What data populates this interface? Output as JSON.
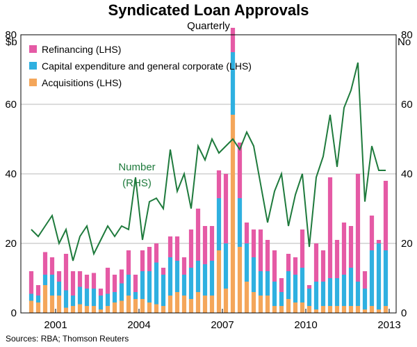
{
  "title": "Syndicated Loan Approvals",
  "subtitle": "Quarterly",
  "source": "Sources: RBA; Thomson Reuters",
  "colors": {
    "refinancing": "#e55aa5",
    "capex": "#2fb0e0",
    "acquisitions": "#f4a65a",
    "number": "#1e7a3c",
    "number_label": "#1e7a3c"
  },
  "chart_data": {
    "type": "bar",
    "subtype": "stacked bar with line on secondary axis",
    "title": "Syndicated Loan Approvals",
    "subtitle": "Quarterly",
    "left_unit": "$b",
    "right_unit": "No",
    "ylim_left": [
      0,
      80
    ],
    "ylim_right": [
      0,
      80
    ],
    "yticks_left": [
      "0",
      "20",
      "40",
      "60",
      "80"
    ],
    "yticks_right": [
      "0",
      "20",
      "40",
      "60",
      "80"
    ],
    "xticks": [
      "2001",
      "2004",
      "2007",
      "2010",
      "2013"
    ],
    "x_tick_years": [
      2001,
      2004,
      2007,
      2010,
      2013
    ],
    "x_range": [
      1999.75,
      2013.25
    ],
    "grid": true,
    "legend_position": "top-left",
    "line_label": [
      "Number",
      "(RHS)"
    ],
    "quarters": [
      "2000-Q1",
      "2000-Q2",
      "2000-Q3",
      "2000-Q4",
      "2001-Q1",
      "2001-Q2",
      "2001-Q3",
      "2001-Q4",
      "2002-Q1",
      "2002-Q2",
      "2002-Q3",
      "2002-Q4",
      "2003-Q1",
      "2003-Q2",
      "2003-Q3",
      "2003-Q4",
      "2004-Q1",
      "2004-Q2",
      "2004-Q3",
      "2004-Q4",
      "2005-Q1",
      "2005-Q2",
      "2005-Q3",
      "2005-Q4",
      "2006-Q1",
      "2006-Q2",
      "2006-Q3",
      "2006-Q4",
      "2007-Q1",
      "2007-Q2",
      "2007-Q3",
      "2007-Q4",
      "2008-Q1",
      "2008-Q2",
      "2008-Q3",
      "2008-Q4",
      "2009-Q1",
      "2009-Q2",
      "2009-Q3",
      "2009-Q4",
      "2010-Q1",
      "2010-Q2",
      "2010-Q3",
      "2010-Q4",
      "2011-Q1",
      "2011-Q2",
      "2011-Q3",
      "2011-Q4",
      "2012-Q1",
      "2012-Q2",
      "2012-Q3",
      "2012-Q4"
    ],
    "series": [
      {
        "name": "Acquisitions (LHS)",
        "axis": "left",
        "values": [
          3.5,
          3,
          8,
          5,
          5,
          1.5,
          2,
          2.5,
          2,
          2,
          1,
          2,
          3,
          3.5,
          5,
          4,
          4,
          3,
          2.5,
          2,
          5,
          6,
          5,
          4,
          6,
          5,
          5,
          18,
          7,
          57,
          19,
          9,
          6,
          5,
          5,
          2,
          2,
          4,
          3,
          3,
          2,
          1,
          2,
          2,
          2,
          2,
          2,
          2,
          1,
          2,
          1,
          2
        ]
      },
      {
        "name": "Capital expenditure and general corporate (LHS)",
        "axis": "left",
        "values": [
          2,
          2,
          3,
          6,
          4,
          5,
          3,
          5,
          5,
          5,
          4,
          3.5,
          3,
          5,
          6,
          2,
          8,
          9,
          12,
          9,
          11,
          9,
          6,
          9,
          9,
          9,
          10,
          15,
          13,
          18,
          14,
          11,
          10,
          7,
          7,
          7,
          4,
          8,
          8,
          10,
          5,
          8,
          7,
          8,
          8,
          9,
          11,
          7,
          6,
          16,
          19,
          16
        ]
      },
      {
        "name": "Refinancing (LHS)",
        "axis": "left",
        "values": [
          6.5,
          3,
          6.5,
          5,
          3,
          10.5,
          7,
          4.5,
          4,
          4.5,
          2,
          7.5,
          5,
          4,
          7,
          5,
          6,
          7,
          5.5,
          2,
          6,
          7,
          5,
          11,
          15,
          11,
          10,
          8,
          20,
          7,
          16,
          6,
          8,
          12,
          9,
          9,
          4,
          5,
          5,
          11,
          1,
          11,
          9,
          29,
          11,
          15,
          12,
          31,
          5,
          10,
          1,
          20
        ]
      },
      {
        "name": "Number",
        "axis": "right",
        "type": "line",
        "values": [
          24,
          22,
          25,
          28,
          20,
          24,
          15,
          22,
          25,
          17,
          21,
          25,
          22,
          25,
          24,
          39,
          21,
          32,
          33,
          30,
          47,
          35,
          40,
          30,
          48,
          44,
          50,
          46,
          48,
          50,
          47,
          52,
          48,
          37,
          26,
          35,
          40,
          25,
          34,
          40,
          19,
          39,
          45,
          57,
          42,
          59,
          64,
          72,
          32,
          48,
          41,
          41
        ]
      }
    ]
  }
}
